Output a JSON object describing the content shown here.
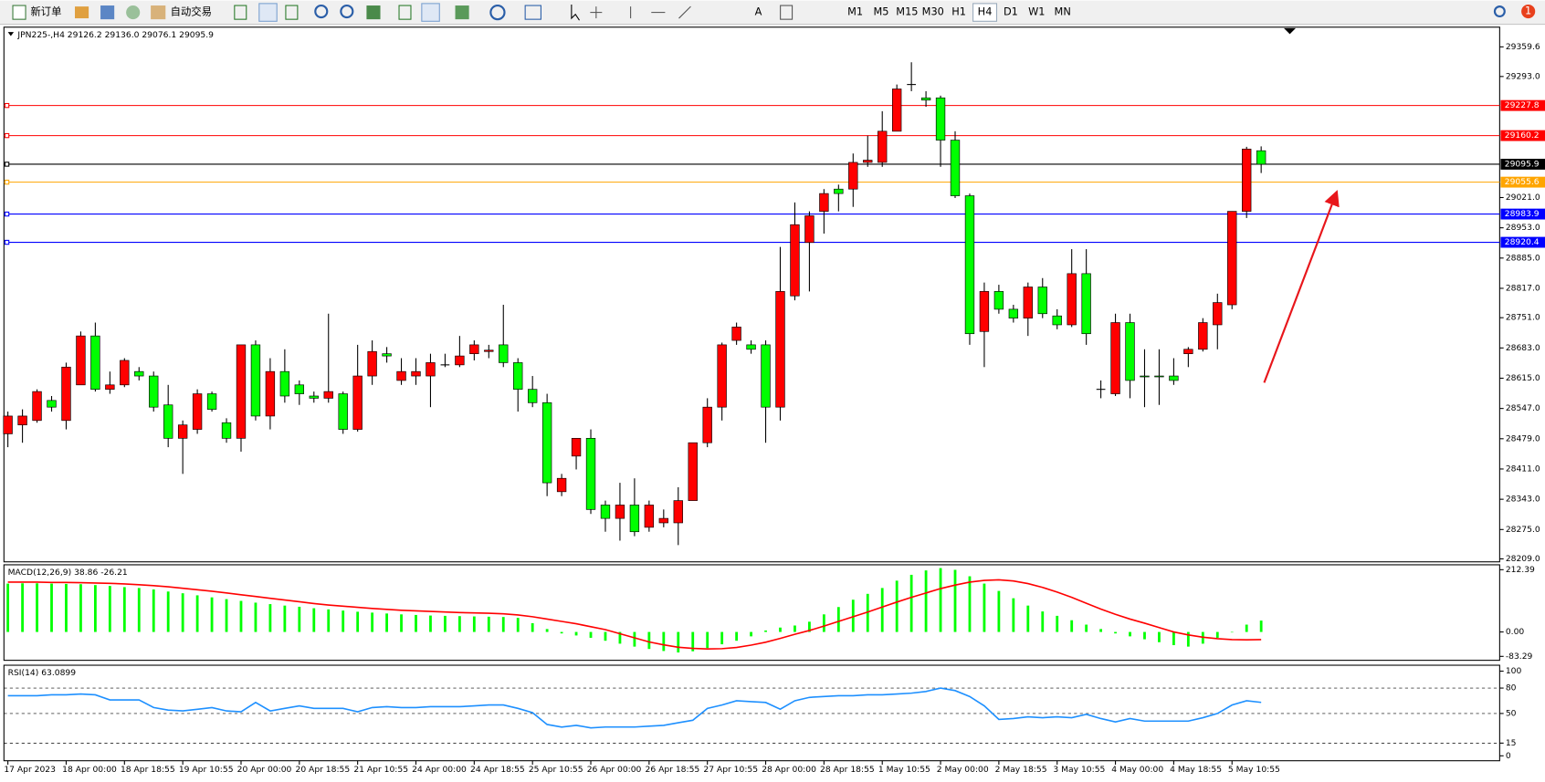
{
  "toolbar": {
    "new_order": "新订单",
    "auto_trading": "自动交易",
    "timeframes": [
      "M1",
      "M5",
      "M15",
      "M30",
      "H1",
      "H4",
      "D1",
      "W1",
      "MN"
    ],
    "active_timeframe": "H4",
    "badge": "1"
  },
  "chart_data": [
    {
      "type": "candlestick",
      "title": "JPN225-,H4  29126.2 29136.0 29076.1 29095.9",
      "up_color": "#ff0000",
      "down_color": "#00ff00",
      "categories": [
        "17 Apr 2023",
        null,
        null,
        null,
        "18 Apr 00:00",
        null,
        null,
        null,
        "18 Apr 18:55",
        null,
        null,
        null,
        "19 Apr 10:55",
        null,
        null,
        null,
        "20 Apr 00:00",
        null,
        null,
        null,
        "20 Apr 18:55",
        null,
        null,
        null,
        "21 Apr 10:55",
        null,
        null,
        null,
        "24 Apr 00:00",
        null,
        null,
        null,
        "24 Apr 18:55",
        null,
        null,
        null,
        "25 Apr 10:55",
        null,
        null,
        null,
        "26 Apr 00:00",
        null,
        null,
        null,
        "26 Apr 18:55",
        null,
        null,
        null,
        "27 Apr 10:55",
        null,
        null,
        null,
        "28 Apr 00:00",
        null,
        null,
        null,
        "28 Apr 18:55",
        null,
        null,
        null,
        "1 May 10:55",
        null,
        null,
        null,
        "2 May 00:00",
        null,
        null,
        null,
        "2 May 18:55",
        null,
        null,
        null,
        "3 May 10:55",
        null,
        null,
        null,
        "4 May 00:00",
        null,
        null,
        null,
        "4 May 18:55",
        null,
        null,
        null,
        "5 May 10:55",
        null,
        null
      ],
      "open": [
        28490,
        28510,
        28520,
        28565,
        28520,
        28600,
        28710,
        28590,
        28600,
        28630,
        28620,
        28555,
        28480,
        28500,
        28580,
        28515,
        28480,
        28690,
        28530,
        28630,
        28600,
        28575,
        28570,
        28580,
        28500,
        28620,
        28670,
        28610,
        28620,
        28620,
        28645,
        28645,
        28670,
        28675,
        28690,
        28650,
        28590,
        28560,
        28360,
        28440,
        28480,
        28330,
        28300,
        28330,
        28280,
        28290,
        28290,
        28340,
        28470,
        28550,
        28700,
        28690,
        28690,
        28550,
        28800,
        28920,
        28990,
        29040,
        29040,
        29100,
        29100,
        29170,
        29275,
        29245,
        29245,
        29150,
        29025,
        28720,
        28810,
        28770,
        28750,
        28820,
        28755,
        28735,
        28850,
        28590,
        28580,
        28740,
        28620,
        28620,
        28620,
        28670,
        28680,
        28735,
        28780,
        28990,
        29126.2
      ],
      "high": [
        28540,
        28545,
        28590,
        28575,
        28650,
        28720,
        28740,
        28630,
        28660,
        28640,
        28630,
        28600,
        28520,
        28590,
        28585,
        28525,
        28690,
        28700,
        28660,
        28680,
        28610,
        28585,
        28760,
        28585,
        28690,
        28700,
        28685,
        28660,
        28660,
        28670,
        28670,
        28710,
        28700,
        28690,
        28780,
        28660,
        28620,
        28580,
        28400,
        28480,
        28500,
        28340,
        28380,
        28390,
        28340,
        28320,
        28370,
        28470,
        28570,
        28695,
        28740,
        28700,
        28700,
        28910,
        29010,
        28990,
        29040,
        29050,
        29120,
        29160,
        29215,
        29275,
        29325,
        29260,
        29250,
        29170,
        29030,
        28830,
        28825,
        28780,
        28830,
        28840,
        28770,
        28905,
        28905,
        28610,
        28760,
        28760,
        28680,
        28680,
        28660,
        28685,
        28750,
        28805,
        28990,
        29135,
        29136
      ],
      "low": [
        28460,
        28470,
        28515,
        28540,
        28500,
        28600,
        28585,
        28580,
        28595,
        28610,
        28540,
        28460,
        28400,
        28490,
        28540,
        28470,
        28450,
        28520,
        28500,
        28560,
        28555,
        28560,
        28560,
        28490,
        28495,
        28600,
        28650,
        28600,
        28600,
        28550,
        28640,
        28640,
        28655,
        28660,
        28640,
        28540,
        28550,
        28350,
        28350,
        28410,
        28310,
        28270,
        28250,
        28260,
        28270,
        28280,
        28240,
        28340,
        28460,
        28520,
        28690,
        28670,
        28470,
        28520,
        28790,
        28810,
        28940,
        28990,
        29000,
        29090,
        29090,
        29170,
        29260,
        29225,
        29090,
        29020,
        28690,
        28640,
        28760,
        28740,
        28710,
        28750,
        28725,
        28730,
        28690,
        28570,
        28575,
        28570,
        28550,
        28555,
        28600,
        28640,
        28675,
        28680,
        28770,
        28975,
        29076.1
      ],
      "close": [
        28530,
        28530,
        28585,
        28550,
        28640,
        28710,
        28590,
        28600,
        28655,
        28620,
        28550,
        28480,
        28510,
        28580,
        28545,
        28480,
        28690,
        28530,
        28630,
        28575,
        28580,
        28570,
        28585,
        28500,
        28620,
        28675,
        28665,
        28630,
        28630,
        28650,
        28645,
        28665,
        28690,
        28678,
        28650,
        28590,
        28560,
        28380,
        28390,
        28480,
        28320,
        28300,
        28330,
        28270,
        28330,
        28300,
        28340,
        28470,
        28550,
        28690,
        28730,
        28680,
        28550,
        28810,
        28960,
        28980,
        29030,
        29030,
        29100,
        29105,
        29170,
        29265,
        29275,
        29240,
        29150,
        29025,
        28715,
        28810,
        28770,
        28750,
        28820,
        28760,
        28735,
        28850,
        28715,
        28590,
        28740,
        28610,
        28618,
        28618,
        28610,
        28680,
        28740,
        28785,
        28990,
        29130,
        29095.9
      ],
      "ylim": [
        28209.0,
        29359.6
      ],
      "yticks": [
        29359.6,
        {
          "value": 29293.0,
          "label": "29293.0"
        },
        {
          "value": 29021.0,
          "label": "29021.0"
        },
        {
          "value": 28953.0,
          "label": "28953.0"
        },
        {
          "value": 28885.0,
          "label": "28885.0"
        },
        {
          "value": 28817.0,
          "label": "28817.0"
        },
        {
          "value": 28751.0,
          "label": "28751.0"
        },
        {
          "value": 28683.0,
          "label": "28683.0"
        },
        {
          "value": 28615.0,
          "label": "28615.0"
        },
        {
          "value": 28547.0,
          "label": "28547.0"
        },
        {
          "value": 28479.0,
          "label": "28479.0"
        },
        {
          "value": 28411.0,
          "label": "28411.0"
        },
        {
          "value": 28343.0,
          "label": "28343.0"
        },
        {
          "value": 28275.0,
          "label": "28275.0"
        },
        {
          "value": 28209.0,
          "label": "28209.0"
        }
      ],
      "hlines": [
        {
          "value": 29227.8,
          "color": "#ff0000"
        },
        {
          "value": 29160.2,
          "color": "#ff0000"
        },
        {
          "value": 29095.9,
          "color": "#000000"
        },
        {
          "value": 29055.6,
          "color": "#ffa500"
        },
        {
          "value": 28983.9,
          "color": "#0000ff"
        },
        {
          "value": 28920.4,
          "color": "#0000ff"
        }
      ]
    },
    {
      "type": "macd",
      "title": "MACD(12,26,9) 38.86 -26.21",
      "series": [
        {
          "color": "#00ff00",
          "values": [
            165,
            166,
            166,
            165,
            164,
            163,
            160,
            157,
            153,
            150,
            145,
            138,
            132,
            125,
            118,
            112,
            106,
            100,
            95,
            90,
            86,
            81,
            77,
            73,
            69,
            66,
            63,
            60,
            58,
            56,
            55,
            54,
            53,
            52,
            51,
            48,
            30,
            10,
            -5,
            -12,
            -20,
            -30,
            -40,
            -50,
            -58,
            -65,
            -70,
            -66,
            -55,
            -42,
            -30,
            -15,
            5,
            15,
            22,
            35,
            60,
            85,
            110,
            130,
            150,
            175,
            195,
            210,
            218,
            212,
            190,
            165,
            140,
            115,
            90,
            70,
            55,
            40,
            25,
            10,
            -5,
            -15,
            -25,
            -35,
            -45,
            -50,
            -40,
            -20,
            0,
            25,
            38.86
          ]
        },
        {
          "color": "#ff0000",
          "values": [
            170,
            170,
            170,
            169,
            169,
            168,
            167,
            166,
            164,
            161,
            158,
            154,
            149,
            144,
            139,
            133,
            127,
            121,
            115,
            109,
            103,
            97,
            92,
            88,
            84,
            80,
            77,
            74,
            72,
            70,
            68,
            66,
            65,
            64,
            62,
            58,
            52,
            44,
            36,
            28,
            18,
            8,
            -6,
            -20,
            -34,
            -44,
            -52,
            -56,
            -58,
            -57,
            -53,
            -45,
            -35,
            -22,
            -8,
            5,
            20,
            36,
            52,
            68,
            85,
            102,
            118,
            133,
            148,
            160,
            170,
            176,
            178,
            174,
            165,
            152,
            136,
            118,
            98,
            78,
            60,
            44,
            30,
            15,
            0,
            -10,
            -18,
            -23,
            -26,
            -27,
            -26.21
          ]
        }
      ],
      "ylim": [
        -83.29,
        212.39
      ],
      "yticks": [
        212.39,
        {
          "value": 0,
          "label": "0.00"
        },
        -83.29
      ]
    },
    {
      "type": "line",
      "title": "RSI(14) 63.0899",
      "color": "#1e90ff",
      "grid": true,
      "values": [
        71,
        71,
        71,
        72,
        72,
        73,
        72,
        66,
        66,
        66,
        57,
        54,
        53,
        55,
        57,
        53,
        52,
        63,
        53,
        56,
        59,
        56,
        56,
        56,
        52,
        57,
        58,
        57,
        57,
        58,
        58,
        58,
        59,
        60,
        60,
        56,
        51,
        37,
        34,
        36,
        33,
        34,
        34,
        34,
        35,
        36,
        39,
        42,
        56,
        60,
        65,
        64,
        63,
        55,
        65,
        69,
        70,
        71,
        71,
        72,
        72,
        73,
        74,
        76,
        80,
        77,
        70,
        59,
        43,
        44,
        46,
        45,
        46,
        45,
        49,
        44,
        40,
        44,
        41,
        41,
        41,
        41,
        45,
        50,
        60,
        65,
        63.0899
      ],
      "ylim": [
        0,
        100
      ],
      "yticks": [
        100,
        80,
        50,
        15,
        0
      ]
    }
  ]
}
